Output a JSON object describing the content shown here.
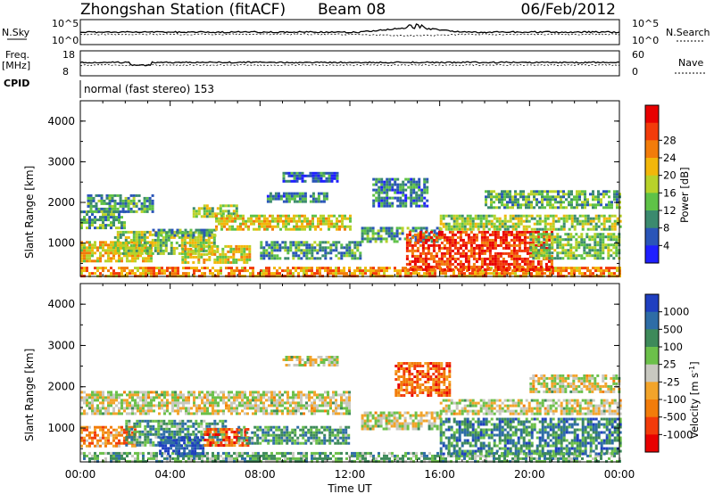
{
  "header": {
    "station": "Zhongshan Station (fitACF)",
    "beam": "Beam 08",
    "date": "06/Feb/2012"
  },
  "strips": {
    "nsky_label": "N.Sky",
    "nsearch_label": "N.Search",
    "freq_label": "Freq.",
    "freq_unit": "[MHz]",
    "nave_label": "Nave",
    "cpid_label": "CPID",
    "cpid_text": "normal (fast stereo) 153",
    "noise_ticks_left": [
      "10^5",
      "10^0"
    ],
    "noise_ticks_right": [
      "10^5",
      "10^0"
    ],
    "freq_ticks": [
      "18",
      "8"
    ],
    "nave_ticks": [
      "60",
      "0"
    ]
  },
  "chart_data": [
    {
      "type": "heatmap",
      "panel": "power",
      "ylabel": "Slant Range [km]",
      "xlabel": "Time UT",
      "ylim": [
        180,
        4500
      ],
      "yticks": [
        1000,
        2000,
        3000,
        4000
      ],
      "xticks": [
        "00:00",
        "04:00",
        "08:00",
        "12:00",
        "16:00",
        "20:00",
        "00:00"
      ],
      "colorbar": {
        "label": "Power [dB]",
        "range": [
          0,
          32
        ],
        "ticks": [
          "4",
          "8",
          "12",
          "16",
          "20",
          "24",
          "28"
        ],
        "colors": [
          "#1f1fff",
          "#2a55b8",
          "#3b8a6e",
          "#5fc247",
          "#b8d22a",
          "#f2b70a",
          "#f27c0a",
          "#f23b0a",
          "#e80000"
        ]
      },
      "regions": [
        {
          "t0": 0.0,
          "t1": 24.0,
          "r0": 200,
          "r1": 420,
          "level": 0.7
        },
        {
          "t0": 0.0,
          "t1": 3.2,
          "r0": 550,
          "r1": 1050,
          "level": 0.6
        },
        {
          "t0": 0.0,
          "t1": 2.0,
          "r0": 1350,
          "r1": 1800,
          "level": 0.35
        },
        {
          "t0": 0.3,
          "t1": 3.2,
          "r0": 1800,
          "r1": 2200,
          "level": 0.3
        },
        {
          "t0": 1.5,
          "t1": 6.0,
          "r0": 750,
          "r1": 1300,
          "level": 0.45
        },
        {
          "t0": 3.2,
          "t1": 6.0,
          "r0": 1200,
          "r1": 1350,
          "level": 0.3
        },
        {
          "t0": 4.5,
          "t1": 7.5,
          "r0": 550,
          "r1": 950,
          "level": 0.55
        },
        {
          "t0": 5.0,
          "t1": 7.0,
          "r0": 1650,
          "r1": 1950,
          "level": 0.45
        },
        {
          "t0": 6.0,
          "t1": 12.0,
          "r0": 1350,
          "r1": 1700,
          "level": 0.55
        },
        {
          "t0": 8.0,
          "t1": 12.5,
          "r0": 650,
          "r1": 1050,
          "level": 0.3
        },
        {
          "t0": 8.3,
          "t1": 11.0,
          "r0": 2050,
          "r1": 2250,
          "level": 0.25
        },
        {
          "t0": 12.5,
          "t1": 16.0,
          "r0": 1050,
          "r1": 1400,
          "level": 0.3
        },
        {
          "t0": 13.0,
          "t1": 15.5,
          "r0": 1900,
          "r1": 2600,
          "level": 0.25
        },
        {
          "t0": 14.5,
          "t1": 21.0,
          "r0": 350,
          "r1": 1300,
          "level": 0.85
        },
        {
          "t0": 16.0,
          "t1": 24.0,
          "r0": 1350,
          "r1": 1700,
          "level": 0.45
        },
        {
          "t0": 18.0,
          "t1": 24.0,
          "r0": 1850,
          "r1": 2300,
          "level": 0.35
        },
        {
          "t0": 20.0,
          "t1": 24.0,
          "r0": 600,
          "r1": 1250,
          "level": 0.4
        },
        {
          "t0": 9.0,
          "t1": 11.5,
          "r0": 2550,
          "r1": 2750,
          "level": 0.2
        }
      ]
    },
    {
      "type": "heatmap",
      "panel": "velocity",
      "ylabel": "Slant Range [km]",
      "xlabel": "Time UT",
      "ylim": [
        180,
        4500
      ],
      "yticks": [
        1000,
        2000,
        3000,
        4000
      ],
      "xticks": [
        "00:00",
        "04:00",
        "08:00",
        "12:00",
        "16:00",
        "20:00",
        "00:00"
      ],
      "colorbar": {
        "label": "Velocity [m s^-1]",
        "ticks": [
          "1000",
          "500",
          "100",
          "25",
          "-25",
          "-100",
          "-500",
          "-1000"
        ],
        "colors": [
          "#1f3fc0",
          "#2e6da6",
          "#3e8a5a",
          "#6cc04a",
          "#c8c8c0",
          "#f2a42a",
          "#f27c0a",
          "#f23b0a",
          "#e80000"
        ]
      },
      "regions": [
        {
          "t0": 0.0,
          "t1": 24.0,
          "r0": 200,
          "r1": 420,
          "level": 0.35
        },
        {
          "t0": 0.0,
          "t1": 2.5,
          "r0": 550,
          "r1": 1050,
          "level": 0.7
        },
        {
          "t0": 0.0,
          "t1": 12.0,
          "r0": 1350,
          "r1": 1900,
          "level": 0.5
        },
        {
          "t0": 2.0,
          "t1": 6.5,
          "r0": 600,
          "r1": 1200,
          "level": 0.3
        },
        {
          "t0": 3.5,
          "t1": 5.5,
          "r0": 350,
          "r1": 800,
          "level": 0.05
        },
        {
          "t0": 5.5,
          "t1": 7.5,
          "r0": 550,
          "r1": 1000,
          "level": 0.8
        },
        {
          "t0": 7.0,
          "t1": 12.0,
          "r0": 600,
          "r1": 1050,
          "level": 0.3
        },
        {
          "t0": 12.5,
          "t1": 16.0,
          "r0": 1000,
          "r1": 1400,
          "level": 0.5
        },
        {
          "t0": 14.0,
          "t1": 16.5,
          "r0": 1800,
          "r1": 2600,
          "level": 0.75
        },
        {
          "t0": 16.0,
          "t1": 24.0,
          "r0": 400,
          "r1": 1250,
          "level": 0.25
        },
        {
          "t0": 16.0,
          "t1": 24.0,
          "r0": 1350,
          "r1": 1700,
          "level": 0.5
        },
        {
          "t0": 20.0,
          "t1": 24.0,
          "r0": 1850,
          "r1": 2300,
          "level": 0.5
        },
        {
          "t0": 9.0,
          "t1": 11.5,
          "r0": 2550,
          "r1": 2750,
          "level": 0.5
        }
      ]
    }
  ]
}
